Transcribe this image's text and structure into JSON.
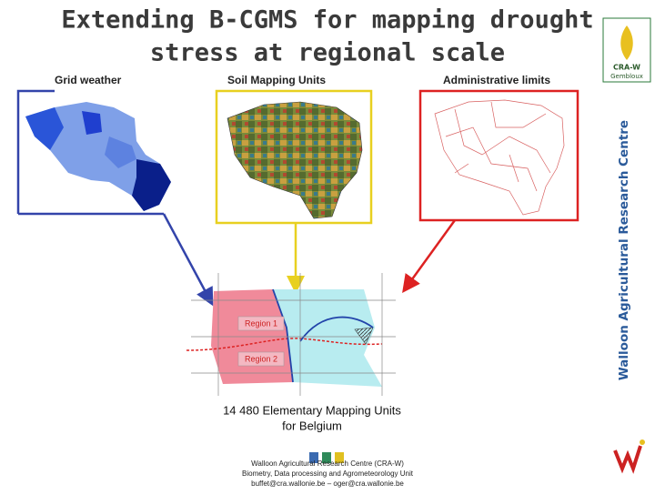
{
  "header": {
    "title_lines": [
      "Extending B-CGMS for mapping drought",
      "stress at regional scale"
    ]
  },
  "panels": {
    "grid_weather": "Grid weather",
    "soil_units": "Soil Mapping Units",
    "admin_limits": "Administrative limits"
  },
  "sidebar": {
    "vertical_text": "Walloon Agricultural Research Centre",
    "logo_top": "CRA-W",
    "logo_sub": "Gembloux"
  },
  "diagram": {
    "regions": [
      "Region 1",
      "Region 2"
    ],
    "caption_lines": [
      "14 480 Elementary Mapping Units",
      "for Belgium"
    ]
  },
  "footer": {
    "lines": [
      "Walloon Agricultural Research Centre (CRA-W)",
      "Biometry, Data processing and Agrometeorology Unit",
      "buffet@cra.wallonie.be – oger@cra.wallonie.be"
    ]
  }
}
